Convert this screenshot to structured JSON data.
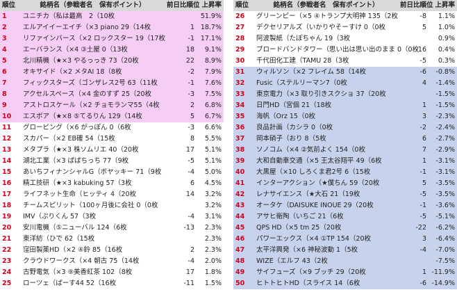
{
  "tables": [
    {
      "header": [
        "順位",
        "銘柄名（参戦者名　保有ポイント）",
        "前日比順位",
        "上昇率"
      ],
      "rows": [
        [
          "1",
          "ユニチカ（私は最高　2（10枚",
          "",
          "51.9%"
        ],
        [
          "2",
          "エルアイイーエイチ（×3 piano 29（14枚",
          "1",
          "18.7%"
        ],
        [
          "3",
          "リファインバース（×2 ロックスター 19（17枚",
          "-1",
          "17.1%"
        ],
        [
          "4",
          "エーバランス（×4 ③土屋 0（13枚",
          "18",
          "9.1%"
        ],
        [
          "5",
          "北川精機（★×3 やるっっき 73（20枚",
          "22",
          "8.9%"
        ],
        [
          "6",
          "オキサイド（×2 メタAI 18（8枚",
          "-2",
          "7.9%"
        ],
        [
          "7",
          "フィックスターズ（ゴンザレス2号 63（11枚",
          "-1",
          "7.6%"
        ],
        [
          "8",
          "アクセルスペース（×4 金のすず 25（20枚",
          "-3",
          "7.5%"
        ],
        [
          "9",
          "アストロスケール（×2 チョモランマ55（4枚",
          "2",
          "6.8%"
        ],
        [
          "10",
          "エスボア（★×8 ⑤てるりん 129（14枚",
          "5",
          "6.7%"
        ],
        [
          "11",
          "グロービング（×6 がっぽん 0（6枚",
          "-3",
          "6.6%"
        ],
        [
          "12",
          "スカパー（×2 EB確 54（15枚",
          "8",
          "5.5%"
        ],
        [
          "13",
          "メタプラ（★×3 株ソムリエ 40（20枚",
          "17",
          "5.1%"
        ],
        [
          "14",
          "湖北工業（×3 ぱぱちっち 77（9枚",
          "-5",
          "5.1%"
        ],
        [
          "15",
          "あいちフィナンシャルG（ボヤッキー 71（9枚",
          "-4",
          "5.0%"
        ],
        [
          "16",
          "精工技研（★×3 kabuking 57（3枚",
          "6",
          "4.5%"
        ],
        [
          "17",
          "ライフネット生命（ヒッティ 4（20枚",
          "14",
          "3.2%"
        ],
        [
          "18",
          "チームスピリット（100ヶ月後に会社 0（0枚",
          "",
          "3.2%"
        ],
        [
          "19",
          "IMV（ぷりくん 57（3枚",
          "-4",
          "3.1%"
        ],
        [
          "20",
          "安川電機（⑤ニューバル 124（6枚",
          "-13",
          "2.3%"
        ],
        [
          "21",
          "東洋紡（ひで 62（15枚",
          "",
          "2.3%"
        ],
        [
          "22",
          "窪田製薬HD（×2 ④鈴 85（16枚",
          "2",
          "2.3%"
        ],
        [
          "23",
          "クラウドワークス（×4 朝古 75（14枚",
          "-4",
          "2.0%"
        ],
        [
          "24",
          "古野電気（×3 ⑨美香紅茶 102（8枚",
          "17",
          "1.8%"
        ],
        [
          "25",
          "ローツェ（ぱーす44 52（16枚",
          "-11",
          "1.5%"
        ]
      ]
    },
    {
      "header": [
        "順位",
        "銘柄名（参戦者名　保有ポイント）",
        "前日比順位",
        "上昇率"
      ],
      "rows": [
        [
          "26",
          "グリーンピー（×5 ④トランプ大明神 135（2枚",
          "-8",
          "1.1%"
        ],
        [
          "27",
          "デクセリアルズ（いかりやそーすけ 0（0枚",
          "5",
          "1.0%"
        ],
        [
          "28",
          "阿波製紙（たぽちゃん 19（3枚",
          "",
          "0.9%"
        ],
        [
          "29",
          "ブロードバンドタワー（思い出は思い出のまま 0（0枚",
          "-16",
          "0.4%"
        ],
        [
          "30",
          "千代田化工建（TAMU 28（3枚",
          "-5",
          "0.3%"
        ],
        [
          "31",
          "ウィルソン（×2 フレイム 58（14枚",
          "-6",
          "-0.8%"
        ],
        [
          "32",
          "Fusic（ステルリーマン7（0枚",
          "4",
          "-1.4%"
        ],
        [
          "33",
          "東京電力（×3 取り引きスクショ 37（20枚",
          "",
          "-1.5%"
        ],
        [
          "34",
          "日門HD（宮個 21（18枚",
          "1",
          "-1.5%"
        ],
        [
          "35",
          "海帆（Orz 15（0枚",
          "3",
          "-2.3%"
        ],
        [
          "36",
          "良品計画（カシラ 0（0枚",
          "-2",
          "-2.4%"
        ],
        [
          "37",
          "岡本硝子（おり 8（5枚",
          "6",
          "-2.7%"
        ],
        [
          "38",
          "ソノコム（×4 ②気前よく 154（0枚",
          "7",
          "-2.9%"
        ],
        [
          "39",
          "大和自動車交通（×5 王太谷翔平 49（6枚",
          "1",
          "-3.1%"
        ],
        [
          "40",
          "大黒屋（×10 しろくま君2号 6（15枚",
          "-1",
          "-3.1%"
        ],
        [
          "41",
          "インターアクション（★僕ちん 59（20枚",
          "5",
          "-3.5%"
        ],
        [
          "42",
          "レナサイエンス（★大石 21（19枚",
          "-5",
          "-3.5%"
        ],
        [
          "43",
          "オータケ（DAISUKE INOUE 29（20枚",
          "-1",
          "-3.6%"
        ],
        [
          "44",
          "アサヒ衛陶（いちご 21（6枚",
          "-5",
          "-5.1%"
        ],
        [
          "45",
          "QPS HD（×5 tm 25（20枚",
          "-22",
          "-6.2%"
        ],
        [
          "46",
          "パワーエックス（×4 ①TP 154（20枚",
          "3",
          "-6.4%"
        ],
        [
          "47",
          "太平洋興発（×6 神秘波動 1（5枚",
          "-4",
          "-7.0%"
        ],
        [
          "48",
          "WIZE（エルフ 43（2枚",
          "",
          "-7.5%"
        ],
        [
          "49",
          "サイフューズ（×9 ブッチ 29（20枚",
          "1",
          "-11.9%"
        ],
        [
          "50",
          "ヒトトヒトHD（スライス 14（6枚",
          "-6",
          "-14.9%"
        ]
      ]
    }
  ]
}
